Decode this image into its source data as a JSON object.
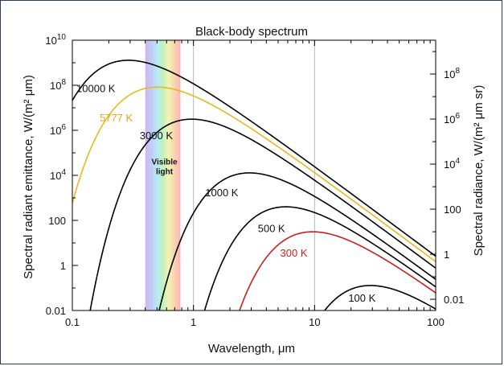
{
  "chart_data": {
    "type": "line",
    "title": "Black-body spectrum",
    "xlabel": "Wavelength, μm",
    "ylabel_left": "Spectral radiant emittance, W/(m² μm)",
    "ylabel_right": "Spectral radiance, W/(m² μm sr)",
    "x_scale": "log",
    "y_scale": "log",
    "xlim": [
      0.1,
      100
    ],
    "ylim_left": [
      0.01,
      10000000000
    ],
    "x_ticks": [
      {
        "value": 0.1,
        "label": "0.1"
      },
      {
        "value": 1,
        "label": "1"
      },
      {
        "value": 10,
        "label": "10"
      },
      {
        "value": 100,
        "label": "100"
      }
    ],
    "y_ticks_left": [
      {
        "value": 0.01,
        "label": "0.01",
        "base": "",
        "exp": ""
      },
      {
        "value": 1,
        "label": "1",
        "base": "",
        "exp": ""
      },
      {
        "value": 100,
        "label": "100",
        "base": "",
        "exp": ""
      },
      {
        "value": 10000,
        "label": "",
        "base": "10",
        "exp": "4"
      },
      {
        "value": 1000000,
        "label": "",
        "base": "10",
        "exp": "6"
      },
      {
        "value": 100000000,
        "label": "",
        "base": "10",
        "exp": "8"
      },
      {
        "value": 10000000000,
        "label": "",
        "base": "10",
        "exp": "10"
      }
    ],
    "y_ticks_right": [
      {
        "value": 0.01,
        "label": "0.01",
        "base": "",
        "exp": ""
      },
      {
        "value": 1,
        "label": "1",
        "base": "",
        "exp": ""
      },
      {
        "value": 100,
        "label": "100",
        "base": "",
        "exp": ""
      },
      {
        "value": 10000,
        "label": "",
        "base": "10",
        "exp": "4"
      },
      {
        "value": 1000000,
        "label": "",
        "base": "10",
        "exp": "6"
      },
      {
        "value": 100000000,
        "label": "",
        "base": "10",
        "exp": "8"
      }
    ],
    "right_axis_relation": "radiance = emittance / π",
    "grid": true,
    "visible_band": {
      "label_line1": "Visible",
      "label_line2": "light",
      "from": 0.4,
      "to": 0.78
    },
    "series": [
      {
        "name": "10000 K",
        "temperature": 10000,
        "color": "#000000",
        "label_at": [
          0.108,
          50000000
        ]
      },
      {
        "name": "5777 K",
        "temperature": 5777,
        "color": "#e8b820",
        "label_at": [
          0.168,
          2500000
        ],
        "label_color": "#e0a818"
      },
      {
        "name": "3000 K",
        "temperature": 3000,
        "color": "#000000",
        "label_at": [
          0.36,
          400000
        ]
      },
      {
        "name": "1000 K",
        "temperature": 1000,
        "color": "#000000",
        "label_at": [
          1.25,
          1200
        ]
      },
      {
        "name": "500 K",
        "temperature": 500,
        "color": "#000000",
        "label_at": [
          3.4,
          30
        ]
      },
      {
        "name": "300 K",
        "temperature": 300,
        "color": "#c8201c",
        "label_at": [
          5.2,
          2.5
        ],
        "label_color": "#c8201c"
      },
      {
        "name": "100 K",
        "temperature": 100,
        "color": "#000000",
        "label_at": [
          19,
          0.025
        ]
      }
    ]
  }
}
